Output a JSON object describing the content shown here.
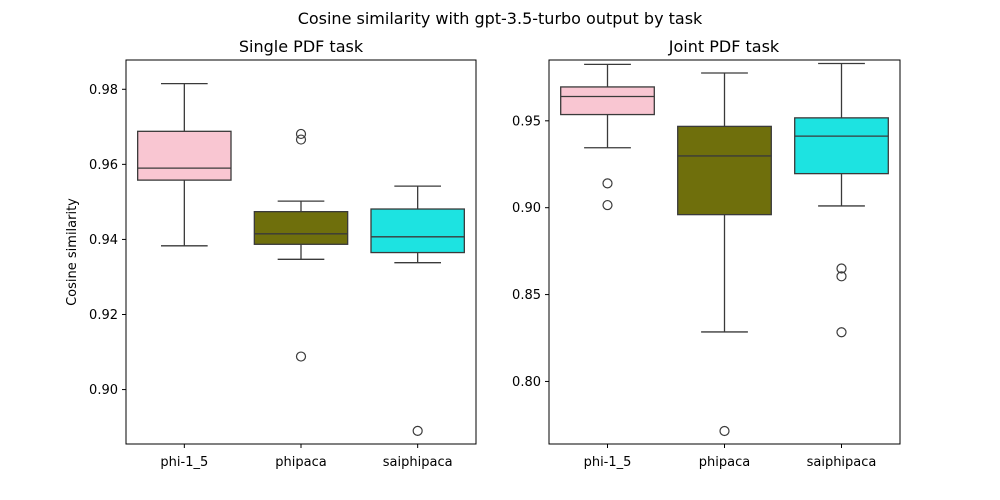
{
  "figure": {
    "suptitle": "Cosine similarity with gpt-3.5-turbo output by task"
  },
  "chart_data": [
    {
      "type": "box",
      "title": "Single PDF task",
      "xlabel": "",
      "ylabel": "Cosine similarity",
      "ylim": [
        0.8855,
        0.9878
      ],
      "yticks": [
        0.9,
        0.92,
        0.94,
        0.96,
        0.98
      ],
      "ytick_labels": [
        "0.90",
        "0.92",
        "0.94",
        "0.96",
        "0.98"
      ],
      "categories": [
        "phi-1_5",
        "phipaca",
        "saiphipaca"
      ],
      "boxes": [
        {
          "category": "phi-1_5",
          "color": "#f9c6d2",
          "q1": 0.9558,
          "median": 0.959,
          "q3": 0.9688,
          "whisker_low": 0.9383,
          "whisker_high": 0.9815,
          "outliers": []
        },
        {
          "category": "phipaca",
          "color": "#6f6f0c",
          "q1": 0.9387,
          "median": 0.9415,
          "q3": 0.9474,
          "whisker_low": 0.9347,
          "whisker_high": 0.9502,
          "outliers": [
            0.9681,
            0.9666,
            0.9088
          ]
        },
        {
          "category": "saiphipaca",
          "color": "#1de3e1",
          "q1": 0.9365,
          "median": 0.9407,
          "q3": 0.9481,
          "whisker_low": 0.9338,
          "whisker_high": 0.9542,
          "outliers": [
            0.889
          ]
        }
      ]
    },
    {
      "type": "box",
      "title": "Joint PDF task",
      "xlabel": "",
      "ylabel": "",
      "ylim": [
        0.764,
        0.985
      ],
      "yticks": [
        0.8,
        0.85,
        0.9,
        0.95
      ],
      "ytick_labels": [
        "0.80",
        "0.85",
        "0.90",
        "0.95"
      ],
      "categories": [
        "phi-1_5",
        "phipaca",
        "saiphipaca"
      ],
      "boxes": [
        {
          "category": "phi-1_5",
          "color": "#f9c6d2",
          "q1": 0.9536,
          "median": 0.964,
          "q3": 0.9695,
          "whisker_low": 0.9345,
          "whisker_high": 0.9825,
          "outliers": [
            0.914,
            0.9015
          ]
        },
        {
          "category": "phipaca",
          "color": "#6f6f0c",
          "q1": 0.896,
          "median": 0.9298,
          "q3": 0.9468,
          "whisker_low": 0.8285,
          "whisker_high": 0.9775,
          "outliers": [
            0.7715
          ]
        },
        {
          "category": "saiphipaca",
          "color": "#1de3e1",
          "q1": 0.9196,
          "median": 0.9412,
          "q3": 0.9517,
          "whisker_low": 0.901,
          "whisker_high": 0.983,
          "outliers": [
            0.865,
            0.8605,
            0.8283
          ]
        }
      ]
    }
  ]
}
